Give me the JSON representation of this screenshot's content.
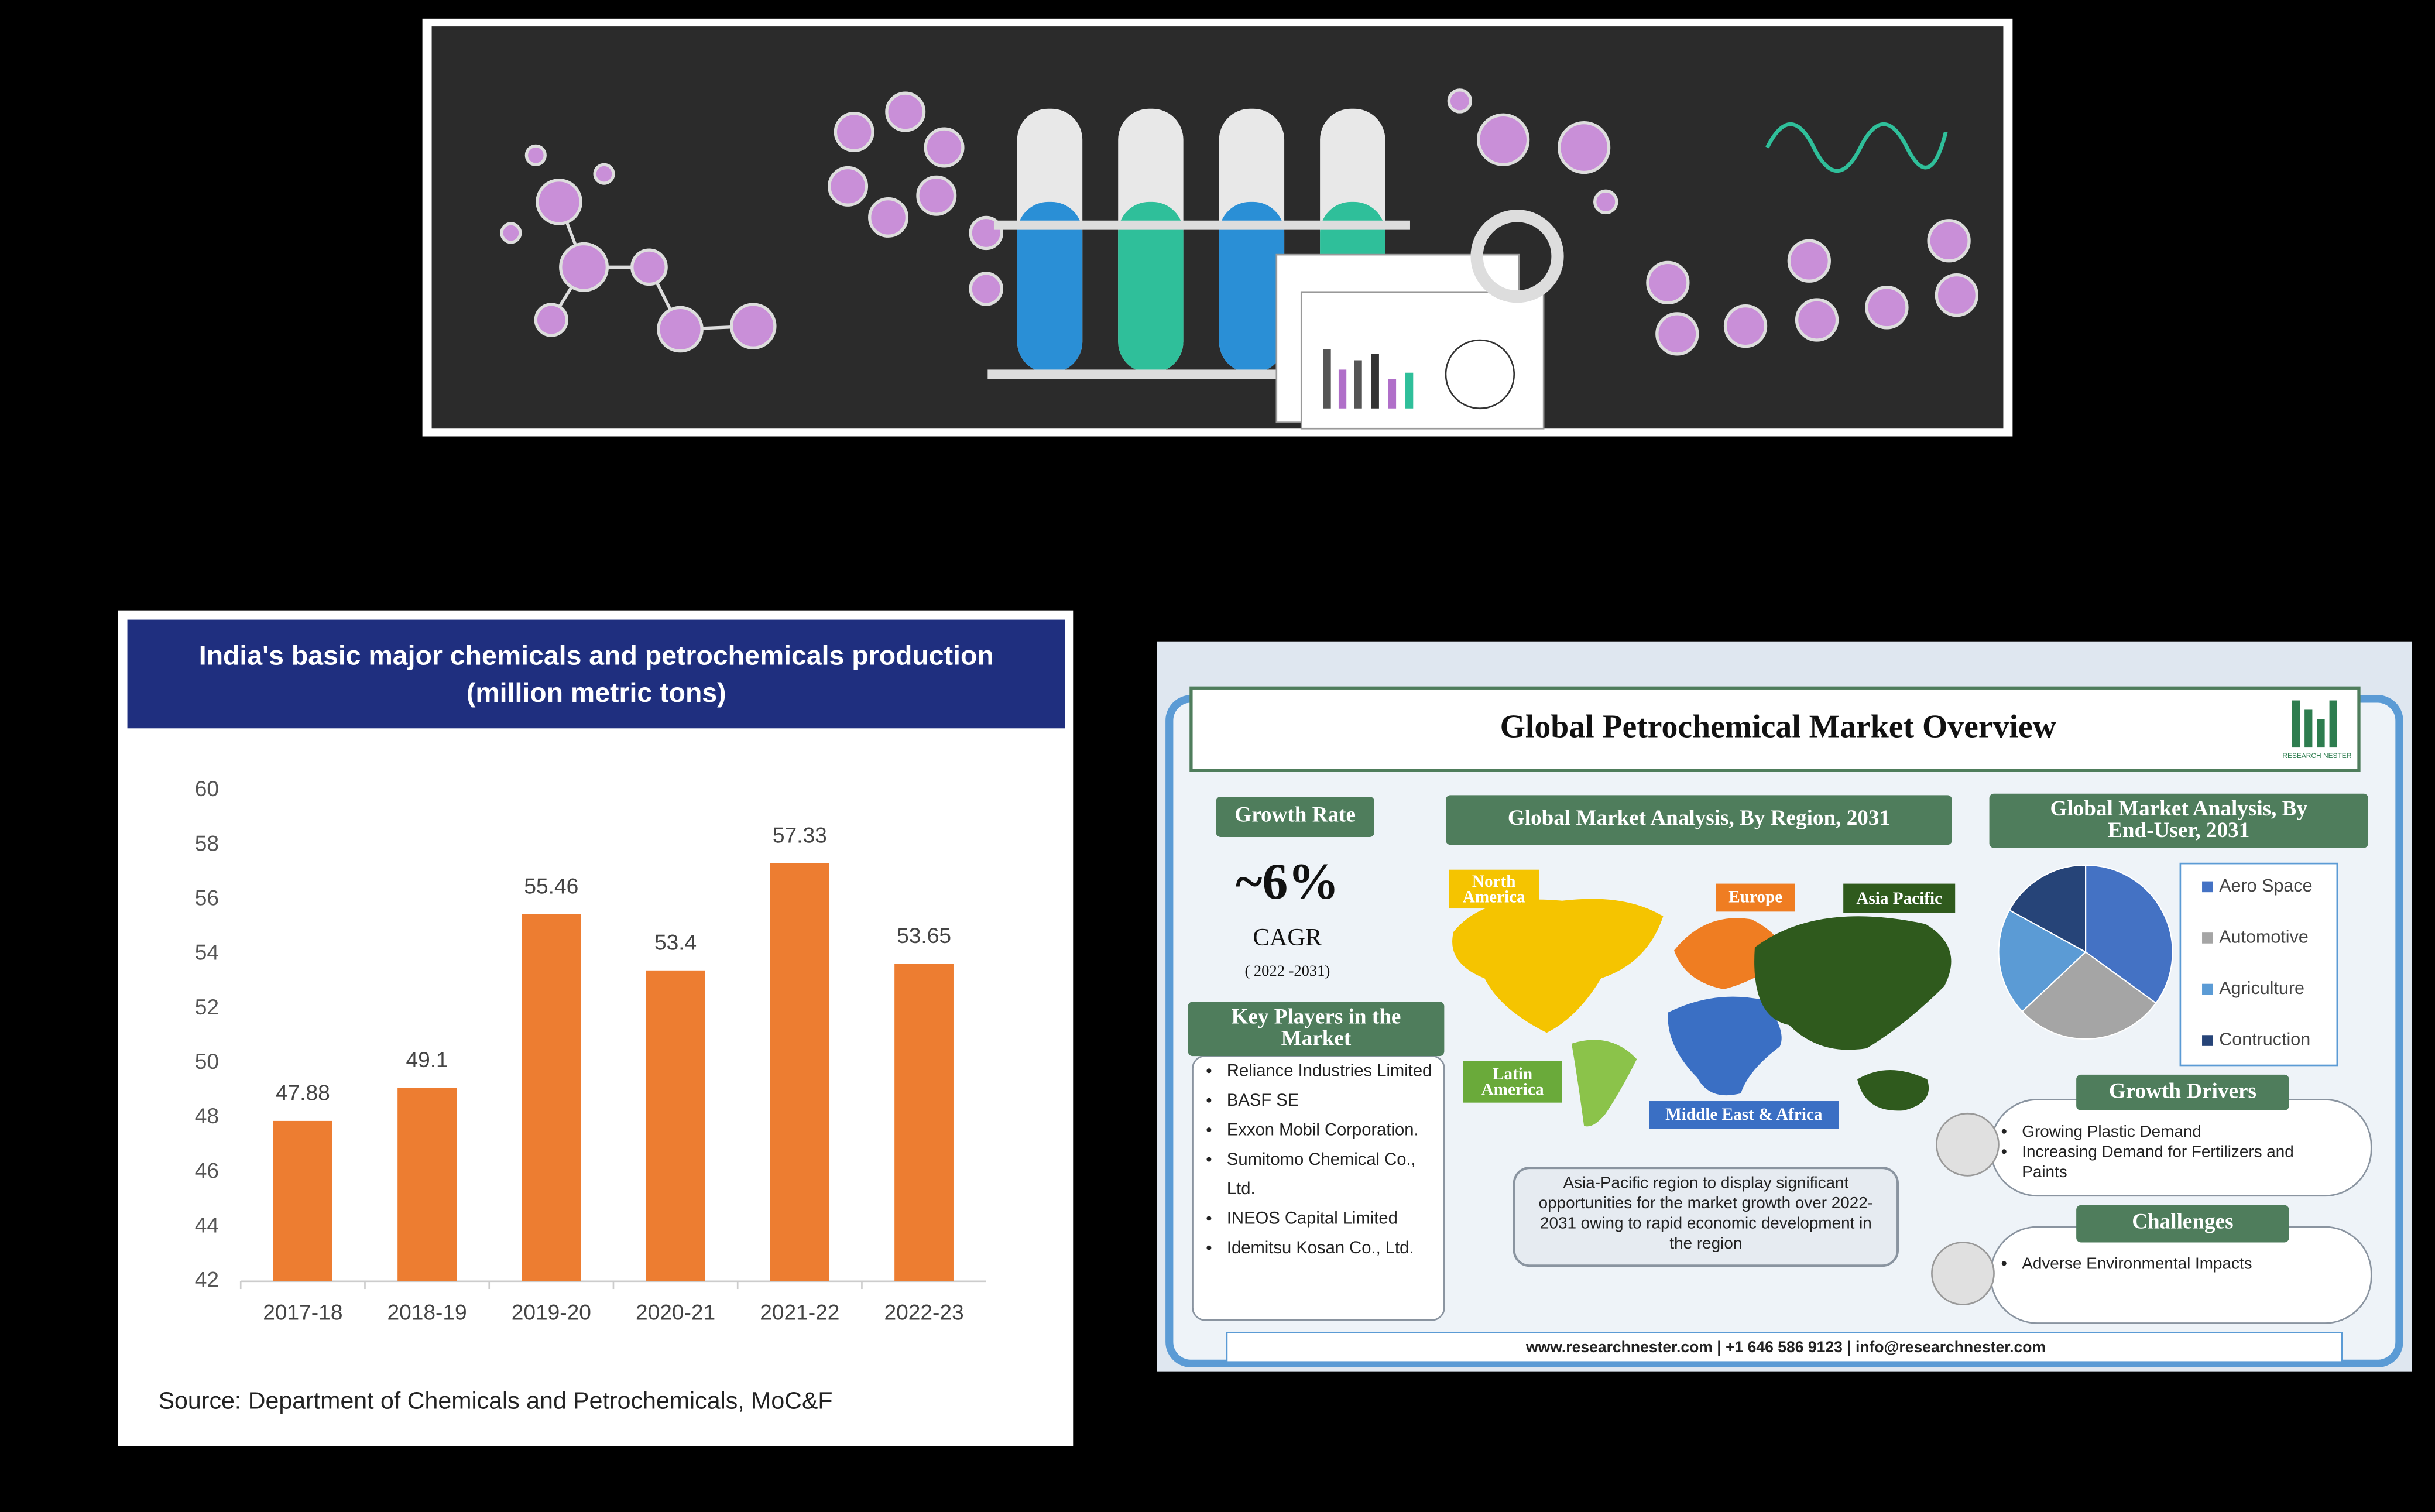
{
  "chart_data": [
    {
      "type": "bar",
      "title": "India's basic major chemicals and petrochemicals production (million metric tons)",
      "categories": [
        "2017-18",
        "2018-19",
        "2019-20",
        "2020-21",
        "2021-22",
        "2022-23"
      ],
      "values": [
        47.88,
        49.1,
        55.46,
        53.4,
        57.33,
        53.65
      ],
      "color": "#ed7d31",
      "ylim": [
        42,
        60
      ],
      "yticks": [
        42,
        44,
        46,
        48,
        50,
        52,
        54,
        56,
        58,
        60
      ],
      "source": "Source: Department of Chemicals and Petrochemicals, MoC&F"
    },
    {
      "type": "pie",
      "title": "Global Market Analysis, By End-User, 2031",
      "categories": [
        "Aero Space",
        "Automotive",
        "Agriculture",
        "Contruction"
      ],
      "values": [
        35,
        28,
        20,
        17
      ],
      "colors": [
        "#4472c4",
        "#a5a5a5",
        "#5b9bd5",
        "#264478"
      ]
    }
  ],
  "infographic": {
    "title": "Global Petrochemical Market Overview",
    "logo": "RESEARCH NESTER",
    "growth_rate": {
      "heading": "Growth Rate",
      "value": "~6%",
      "label": "CAGR",
      "period": "( 2022 -2031)"
    },
    "region": {
      "heading": "Global Market Analysis, By Region, 2031",
      "regions": [
        "North America",
        "Europe",
        "Asia Pacific",
        "Latin America",
        "Middle East & Africa"
      ],
      "note": "Asia-Pacific region to display significant opportunities for the market growth over 2022-2031 owing to rapid economic development in the region"
    },
    "key_players": {
      "heading": "Key Players in the Market",
      "items": [
        "Reliance Industries Limited",
        "BASF SE",
        "Exxon Mobil Corporation.",
        "Sumitomo Chemical Co., Ltd.",
        "INEOS Capital Limited",
        "Idemitsu Kosan Co., Ltd."
      ]
    },
    "growth_drivers": {
      "heading": "Growth Drivers",
      "items": [
        "Growing Plastic Demand",
        "Increasing Demand for Fertilizers and Paints"
      ]
    },
    "challenges": {
      "heading": "Challenges",
      "items": [
        "Adverse Environmental Impacts"
      ]
    },
    "footer": "www.researchnester.com | +1 646 586 9123 | info@researchnester.com"
  }
}
